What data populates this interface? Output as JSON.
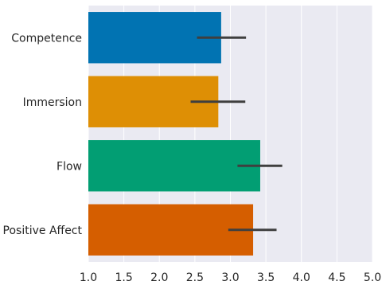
{
  "chart_data": {
    "type": "bar",
    "orientation": "horizontal",
    "categories": [
      "Competence",
      "Immersion",
      "Flow",
      "Positive Affect"
    ],
    "values": [
      2.87,
      2.83,
      3.42,
      3.32
    ],
    "error_low": [
      2.53,
      2.44,
      3.1,
      2.97
    ],
    "error_high": [
      3.22,
      3.21,
      3.73,
      3.65
    ],
    "colors": [
      "#0173b2",
      "#de8f05",
      "#029e73",
      "#d55e00"
    ],
    "xlim": [
      1.0,
      5.0
    ],
    "xticks": [
      "1.0",
      "1.5",
      "2.0",
      "2.5",
      "3.0",
      "3.5",
      "4.0",
      "4.5",
      "5.0"
    ],
    "grid": true,
    "background": "#eaeaf2",
    "errorbar_color": "#3f3f3f",
    "title": "",
    "xlabel": "",
    "ylabel": ""
  }
}
